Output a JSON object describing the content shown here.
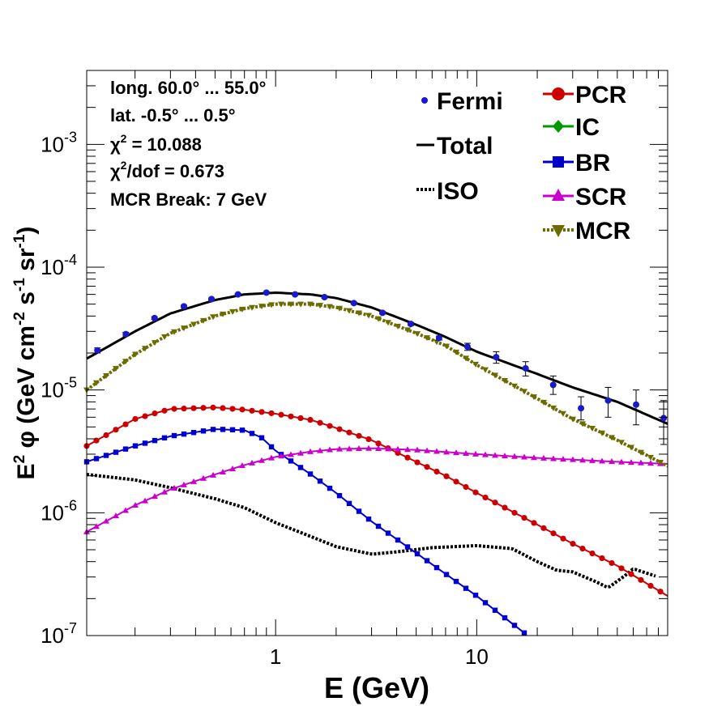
{
  "chart_data": {
    "type": "line",
    "xscale": "log",
    "yscale": "log",
    "xlim": [
      0.115,
      89
    ],
    "ylim": [
      1e-07,
      0.004
    ],
    "xlabel": "E (GeV)",
    "ylabel": {
      "prefix": "E",
      "prefix_sup": "2",
      "main": " φ (GeV cm",
      "sup1": "-2",
      "mid": " s",
      "sup2": "-1",
      "mid2": " sr",
      "sup3": "-1",
      "end": ")"
    },
    "x_tick_labels": [
      {
        "value": 1,
        "label": "1"
      },
      {
        "value": 10,
        "label": "10"
      }
    ],
    "y_tick_labels": [
      {
        "value": 1e-07,
        "base": "10",
        "exp": "-7"
      },
      {
        "value": 1e-06,
        "base": "10",
        "exp": "-6"
      },
      {
        "value": 1e-05,
        "base": "10",
        "exp": "-5"
      },
      {
        "value": 0.0001,
        "base": "10",
        "exp": "-4"
      },
      {
        "value": 0.001,
        "base": "10",
        "exp": "-3"
      }
    ],
    "info_box": {
      "long": "long. 60.0° ... 55.0°",
      "lat": "lat. -0.5° ... 0.5°",
      "chi2_sym": "χ",
      "chi2_sup": "2",
      "chi2_val": " = 10.088",
      "chi2dof_sym": "χ",
      "chi2dof_sup": "2",
      "chi2dof_val": "/dof = 0.673",
      "break": "MCR Break:  7 GeV"
    },
    "fermi": {
      "name": "Fermi",
      "color": "#1a1acc",
      "x": [
        0.13,
        0.18,
        0.25,
        0.35,
        0.48,
        0.65,
        0.9,
        1.25,
        1.75,
        2.45,
        3.4,
        4.7,
        6.5,
        9.0,
        12.5,
        17.5,
        24,
        33,
        45,
        62,
        85
      ],
      "y": [
        2.1e-05,
        2.85e-05,
        3.85e-05,
        4.8e-05,
        5.5e-05,
        6e-05,
        6.2e-05,
        6e-05,
        5.7e-05,
        5.1e-05,
        4.25e-05,
        3.45e-05,
        2.65e-05,
        2.25e-05,
        1.85e-05,
        1.5e-05,
        1.1e-05,
        7.1e-06,
        8.2e-06,
        7.6e-06,
        5.9e-06
      ],
      "yerr_low": [
        2e-05,
        2.75e-05,
        3.75e-05,
        4.7e-05,
        5.4e-05,
        5.9e-05,
        6.1e-05,
        5.9e-05,
        5.6e-05,
        5e-05,
        4.15e-05,
        3.35e-05,
        2.55e-05,
        2.1e-05,
        1.65e-05,
        1.3e-05,
        9.2e-06,
        5.7e-06,
        6e-06,
        5.2e-06,
        3.6e-06
      ],
      "yerr_high": [
        2.2e-05,
        2.95e-05,
        3.95e-05,
        4.9e-05,
        5.6e-05,
        6.1e-05,
        6.3e-05,
        6.1e-05,
        5.8e-05,
        5.2e-05,
        4.35e-05,
        3.55e-05,
        2.75e-05,
        2.4e-05,
        2.05e-05,
        1.7e-05,
        1.3e-05,
        8.8e-06,
        1.05e-05,
        1e-05,
        8.2e-06
      ]
    },
    "series": [
      {
        "name": "Total",
        "key": "total",
        "color": "#000000",
        "style": "solid",
        "marker": "none",
        "x": [
          0.115,
          0.2,
          0.3,
          0.5,
          0.7,
          1.0,
          1.5,
          2.0,
          3.0,
          5.0,
          7.0,
          10,
          20,
          30,
          50,
          89
        ],
        "y": [
          1.8e-05,
          3e-05,
          4.2e-05,
          5.4e-05,
          6e-05,
          6.2e-05,
          6e-05,
          5.6e-05,
          4.7e-05,
          3.4e-05,
          2.7e-05,
          2.05e-05,
          1.35e-05,
          1.05e-05,
          8e-06,
          5.3e-06
        ]
      },
      {
        "name": "ISO",
        "key": "iso",
        "color": "#000000",
        "style": "dotted",
        "marker": "none",
        "x": [
          0.115,
          0.2,
          0.3,
          0.5,
          0.7,
          1.0,
          1.5,
          2.0,
          3.0,
          4.0,
          6.0,
          10,
          15,
          20,
          25,
          30,
          40,
          45,
          55,
          60,
          80
        ],
        "y": [
          2.05e-06,
          1.85e-06,
          1.6e-06,
          1.3e-06,
          1.1e-06,
          8.3e-07,
          6.4e-07,
          5.3e-07,
          4.6e-07,
          4.8e-07,
          5.2e-07,
          5.4e-07,
          5.1e-07,
          4e-07,
          3.4e-07,
          3.3e-07,
          2.7e-07,
          2.45e-07,
          3.1e-07,
          3.5e-07,
          3e-07
        ]
      },
      {
        "name": "PCR",
        "key": "pcr",
        "color": "#cc0000",
        "style": "solid",
        "marker": "circle",
        "x": [
          0.115,
          0.2,
          0.3,
          0.5,
          0.7,
          1.0,
          1.5,
          2.0,
          3.0,
          5.0,
          7.0,
          10,
          20,
          30,
          50,
          89
        ],
        "y": [
          3.5e-06,
          5.8e-06,
          7e-06,
          7.2e-06,
          6.9e-06,
          6.4e-06,
          5.7e-06,
          4.9e-06,
          3.9e-06,
          2.6e-06,
          2e-06,
          1.45e-06,
          8e-07,
          5.6e-07,
          3.7e-07,
          2.1e-07
        ]
      },
      {
        "name": "IC",
        "key": "ic",
        "color": "#009900",
        "style": "solid",
        "marker": "diamond",
        "x": [],
        "y": []
      },
      {
        "name": "BR",
        "key": "br",
        "color": "#0000cc",
        "style": "solid",
        "marker": "square",
        "x": [
          0.115,
          0.2,
          0.3,
          0.5,
          0.7,
          0.85,
          1.0,
          1.5,
          2.0,
          3.0,
          5.0,
          10,
          17.5
        ],
        "y": [
          2.6e-06,
          3.5e-06,
          4.2e-06,
          4.8e-06,
          4.7e-06,
          4.1e-06,
          3.2e-06,
          2.05e-06,
          1.45e-06,
          8.5e-07,
          4.7e-07,
          2.1e-07,
          1.03e-07
        ]
      },
      {
        "name": "SCR",
        "key": "scr",
        "color": "#cc00cc",
        "style": "solid",
        "marker": "triangle-up",
        "x": [
          0.115,
          0.2,
          0.3,
          0.5,
          0.7,
          1.0,
          1.5,
          2.0,
          3.0,
          5.0,
          10,
          20,
          50,
          89
        ],
        "y": [
          7e-07,
          1.15e-06,
          1.55e-06,
          2.05e-06,
          2.45e-06,
          2.85e-06,
          3.15e-06,
          3.3e-06,
          3.35e-06,
          3.25e-06,
          3e-06,
          2.8e-06,
          2.6e-06,
          2.5e-06
        ]
      },
      {
        "name": "MCR",
        "key": "mcr",
        "color": "#6b6b00",
        "style": "dotted",
        "marker": "triangle-down",
        "x": [
          0.115,
          0.2,
          0.3,
          0.5,
          0.7,
          1.0,
          1.5,
          2.0,
          3.0,
          5.0,
          7.0,
          10,
          20,
          30,
          50,
          89
        ],
        "y": [
          1e-05,
          1.95e-05,
          2.9e-05,
          4e-05,
          4.6e-05,
          5e-05,
          5e-05,
          4.7e-05,
          4e-05,
          2.9e-05,
          2.3e-05,
          1.6e-05,
          8.5e-06,
          5.8e-06,
          3.9e-06,
          2.4e-06
        ]
      }
    ]
  }
}
